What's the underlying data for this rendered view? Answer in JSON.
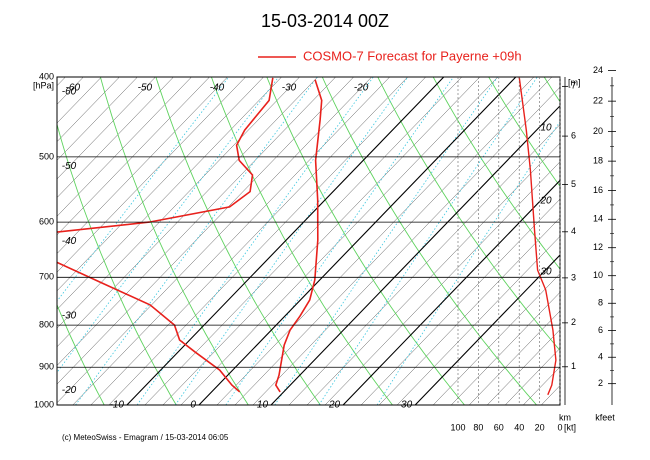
{
  "chart_data": {
    "type": "emagram",
    "title": "15-03-2014  00Z",
    "legend": "COSMO-7 Forecast for Payerne   +09h",
    "footer": "(c) MeteoSwiss - Emagram  /  15-03-2014 06:05",
    "ylabel": "[hPa]",
    "log_y": true,
    "ylim": [
      1000,
      400
    ],
    "yticks": [
      400,
      500,
      600,
      700,
      800,
      900,
      1000
    ],
    "xlim": [
      -19.7,
      50.1
    ],
    "xticks": [
      -10,
      0,
      10,
      20,
      30
    ],
    "top_isotherm_labels": [
      -60,
      -50,
      -40,
      -30,
      -20
    ],
    "left_isotherm_labels": [
      -60,
      -50,
      -40,
      -30,
      -20
    ],
    "series": [
      {
        "color": "#e8211c",
        "pressure": [
          964,
          946,
          920,
          846,
          811,
          780,
          746,
          705,
          631,
          564,
          505,
          451,
          427,
          403
        ],
        "temperature": [
          9.5,
          8.0,
          7.1,
          3.8,
          2.6,
          2.1,
          1.3,
          -0.7,
          -5.6,
          -11.0,
          -16.6,
          -21.4,
          -23.8,
          -27.5
        ]
      },
      {
        "color": "#e8211c",
        "pressure": [
          964,
          946,
          907,
          862,
          834,
          800,
          756,
          709,
          671,
          null,
          617,
          600,
          575,
          551,
          526,
          505,
          484,
          464,
          427,
          401
        ],
        "temperature": [
          3.9,
          1.9,
          -1.8,
          -7.7,
          -11.4,
          -14.1,
          -20.2,
          -30.3,
          -38.9,
          null,
          -42.9,
          -31.4,
          -22.3,
          -21.5,
          -23.4,
          -27.2,
          -29.6,
          -30.5,
          -31.1,
          -33.6
        ]
      }
    ],
    "wind_speed": {
      "color": "#e8211c",
      "pressure": [
        400,
        464,
        519,
        613,
        686,
        725,
        811,
        882,
        946,
        972
      ],
      "values": [
        40,
        33,
        29,
        25,
        22,
        14,
        7,
        4,
        8,
        12
      ]
    },
    "wind_xlim": [
      0,
      100
    ],
    "kt_ticks": [
      100,
      80,
      60,
      40,
      20,
      0
    ],
    "kt_label": "[kt]",
    "isotach_labels": [
      10,
      20,
      30
    ],
    "m_label": "[m]",
    "km_ticks": [
      1,
      2,
      3,
      4,
      5,
      6,
      7
    ],
    "km_label": "km",
    "kfeet_ticks": [
      2,
      4,
      6,
      8,
      10,
      12,
      14,
      16,
      18,
      20,
      22,
      24
    ],
    "kfeet_label": "kfeet"
  }
}
